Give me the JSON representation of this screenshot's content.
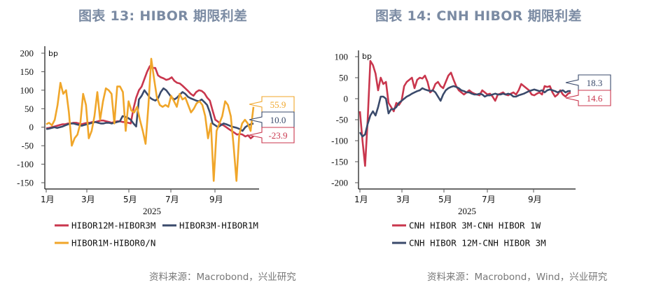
{
  "titles": {
    "left": "图表 13: HIBOR 期限利差",
    "right": "图表 14: CNH HIBOR 期限利差"
  },
  "sources": {
    "left": "资料来源：Macrobond，兴业研究",
    "right": "资料来源：Macrobond，Wind，兴业研究"
  },
  "chart_data": [
    {
      "type": "line",
      "title": "图表 13: HIBOR 期限利差",
      "xlabel": "2025",
      "ylabel": "bp",
      "unit": "bp",
      "ylim": [
        -165,
        210
      ],
      "yticks": [
        200,
        150,
        100,
        50,
        0,
        -50,
        -100,
        -150
      ],
      "xticks": [
        "1月",
        "3月",
        "5月",
        "7月",
        "9月"
      ],
      "grid": false,
      "legend_position": "bottom",
      "x_range_months": [
        0,
        10.2
      ],
      "series": [
        {
          "name": "HIBOR12M-HIBOR3M",
          "color": "#c9364d",
          "last_value": -23.9,
          "values": [
            -3,
            -2,
            0,
            2,
            4,
            6,
            8,
            8,
            10,
            10,
            12,
            12,
            10,
            8,
            10,
            12,
            12,
            14,
            14,
            16,
            18,
            18,
            16,
            14,
            12,
            14,
            16,
            16,
            14,
            14,
            12,
            10,
            50,
            80,
            100,
            110,
            130,
            150,
            165,
            160,
            160,
            140,
            135,
            132,
            128,
            130,
            135,
            125,
            120,
            118,
            112,
            105,
            98,
            90,
            85,
            95,
            100,
            98,
            92,
            80,
            72,
            45,
            20,
            15,
            8,
            5,
            0,
            -5,
            -10,
            -15,
            -20,
            -18,
            -20,
            -25,
            -22,
            -30,
            -24
          ],
          "tag_color": "#c9364d",
          "tag_label": "-23.9"
        },
        {
          "name": "HIBOR3M-HIBOR1M",
          "color": "#3a4a6b",
          "last_value": 10.0,
          "values": [
            -5,
            -4,
            -2,
            0,
            -2,
            0,
            2,
            5,
            8,
            10,
            10,
            8,
            6,
            4,
            6,
            8,
            10,
            12,
            14,
            12,
            10,
            10,
            12,
            12,
            10,
            12,
            14,
            16,
            30,
            28,
            25,
            20,
            10,
            2,
            75,
            85,
            100,
            90,
            80,
            75,
            72,
            78,
            95,
            105,
            100,
            90,
            80,
            75,
            80,
            88,
            95,
            90,
            82,
            78,
            75,
            72,
            70,
            75,
            68,
            60,
            40,
            10,
            5,
            0,
            5,
            10,
            8,
            5,
            2,
            0,
            -2,
            -5,
            -10,
            0,
            5,
            8,
            10
          ],
          "tag_color": "#3a4a6b",
          "tag_label": "10.0"
        },
        {
          "name": "HIBOR1M-HIBOR0/N",
          "color": "#f0a62a",
          "last_value": 55.9,
          "values": [
            8,
            12,
            5,
            20,
            60,
            120,
            90,
            100,
            40,
            -50,
            -30,
            -20,
            10,
            90,
            60,
            -30,
            -10,
            30,
            95,
            20,
            70,
            105,
            100,
            90,
            10,
            110,
            110,
            95,
            -10,
            70,
            45,
            40,
            55,
            20,
            -10,
            -45,
            60,
            185,
            130,
            80,
            60,
            55,
            60,
            55,
            85,
            70,
            55,
            90,
            75,
            80,
            60,
            40,
            50,
            65,
            70,
            60,
            30,
            -30,
            10,
            -145,
            -10,
            10,
            30,
            70,
            60,
            30,
            -50,
            -145,
            -20,
            10,
            20,
            10,
            -10,
            55
          ],
          "tag_color": "#f0a62a",
          "tag_label": "55.9"
        }
      ]
    },
    {
      "type": "line",
      "title": "图表 14: CNH HIBOR 期限利差",
      "xlabel": "2025",
      "ylabel": "bp",
      "unit": "bp",
      "ylim": [
        -215,
        115
      ],
      "yticks": [
        100,
        50,
        0,
        -50,
        -100,
        -150,
        -200
      ],
      "xticks": [
        "1月",
        "3月",
        "5月",
        "7月",
        "9月"
      ],
      "grid": false,
      "legend_position": "bottom",
      "x_range_months": [
        0,
        10.2
      ],
      "series": [
        {
          "name": "CNH HIBOR 3M-CNH HIBOR 1W",
          "color": "#c9364d",
          "last_value": 14.6,
          "values": [
            -30,
            -100,
            -160,
            -50,
            90,
            80,
            60,
            20,
            50,
            35,
            40,
            -10,
            -20,
            -30,
            -10,
            -15,
            -5,
            30,
            40,
            45,
            50,
            25,
            45,
            50,
            48,
            55,
            40,
            15,
            20,
            35,
            40,
            30,
            25,
            40,
            55,
            62,
            45,
            30,
            20,
            15,
            10,
            15,
            20,
            15,
            12,
            10,
            8,
            20,
            15,
            10,
            12,
            5,
            -5,
            10,
            12,
            15,
            10,
            8,
            12,
            15,
            10,
            20,
            35,
            30,
            25,
            20,
            10,
            8,
            12,
            15,
            10,
            30,
            28,
            30,
            15,
            5,
            10,
            20,
            10,
            5,
            12,
            14.6
          ],
          "tag_color": "#c9364d",
          "tag_label": "14.6"
        },
        {
          "name": "CNH HIBOR 12M-CNH HIBOR 3M",
          "color": "#3a4a6b",
          "last_value": 18.3,
          "values": [
            -80,
            -90,
            -85,
            -60,
            -40,
            -30,
            -40,
            -20,
            5,
            5,
            0,
            -35,
            -25,
            -25,
            -20,
            -10,
            -5,
            0,
            5,
            8,
            12,
            15,
            18,
            20,
            25,
            22,
            20,
            18,
            20,
            15,
            5,
            -5,
            10,
            20,
            25,
            28,
            30,
            28,
            25,
            20,
            18,
            15,
            15,
            12,
            10,
            10,
            12,
            10,
            5,
            8,
            8,
            10,
            12,
            10,
            10,
            12,
            10,
            12,
            10,
            5,
            5,
            8,
            10,
            12,
            15,
            18,
            20,
            22,
            20,
            18,
            20,
            15,
            20,
            22,
            20,
            18,
            15,
            18,
            20,
            15,
            18,
            18.3
          ],
          "tag_color": "#3a4a6b",
          "tag_label": "18.3"
        }
      ]
    }
  ]
}
